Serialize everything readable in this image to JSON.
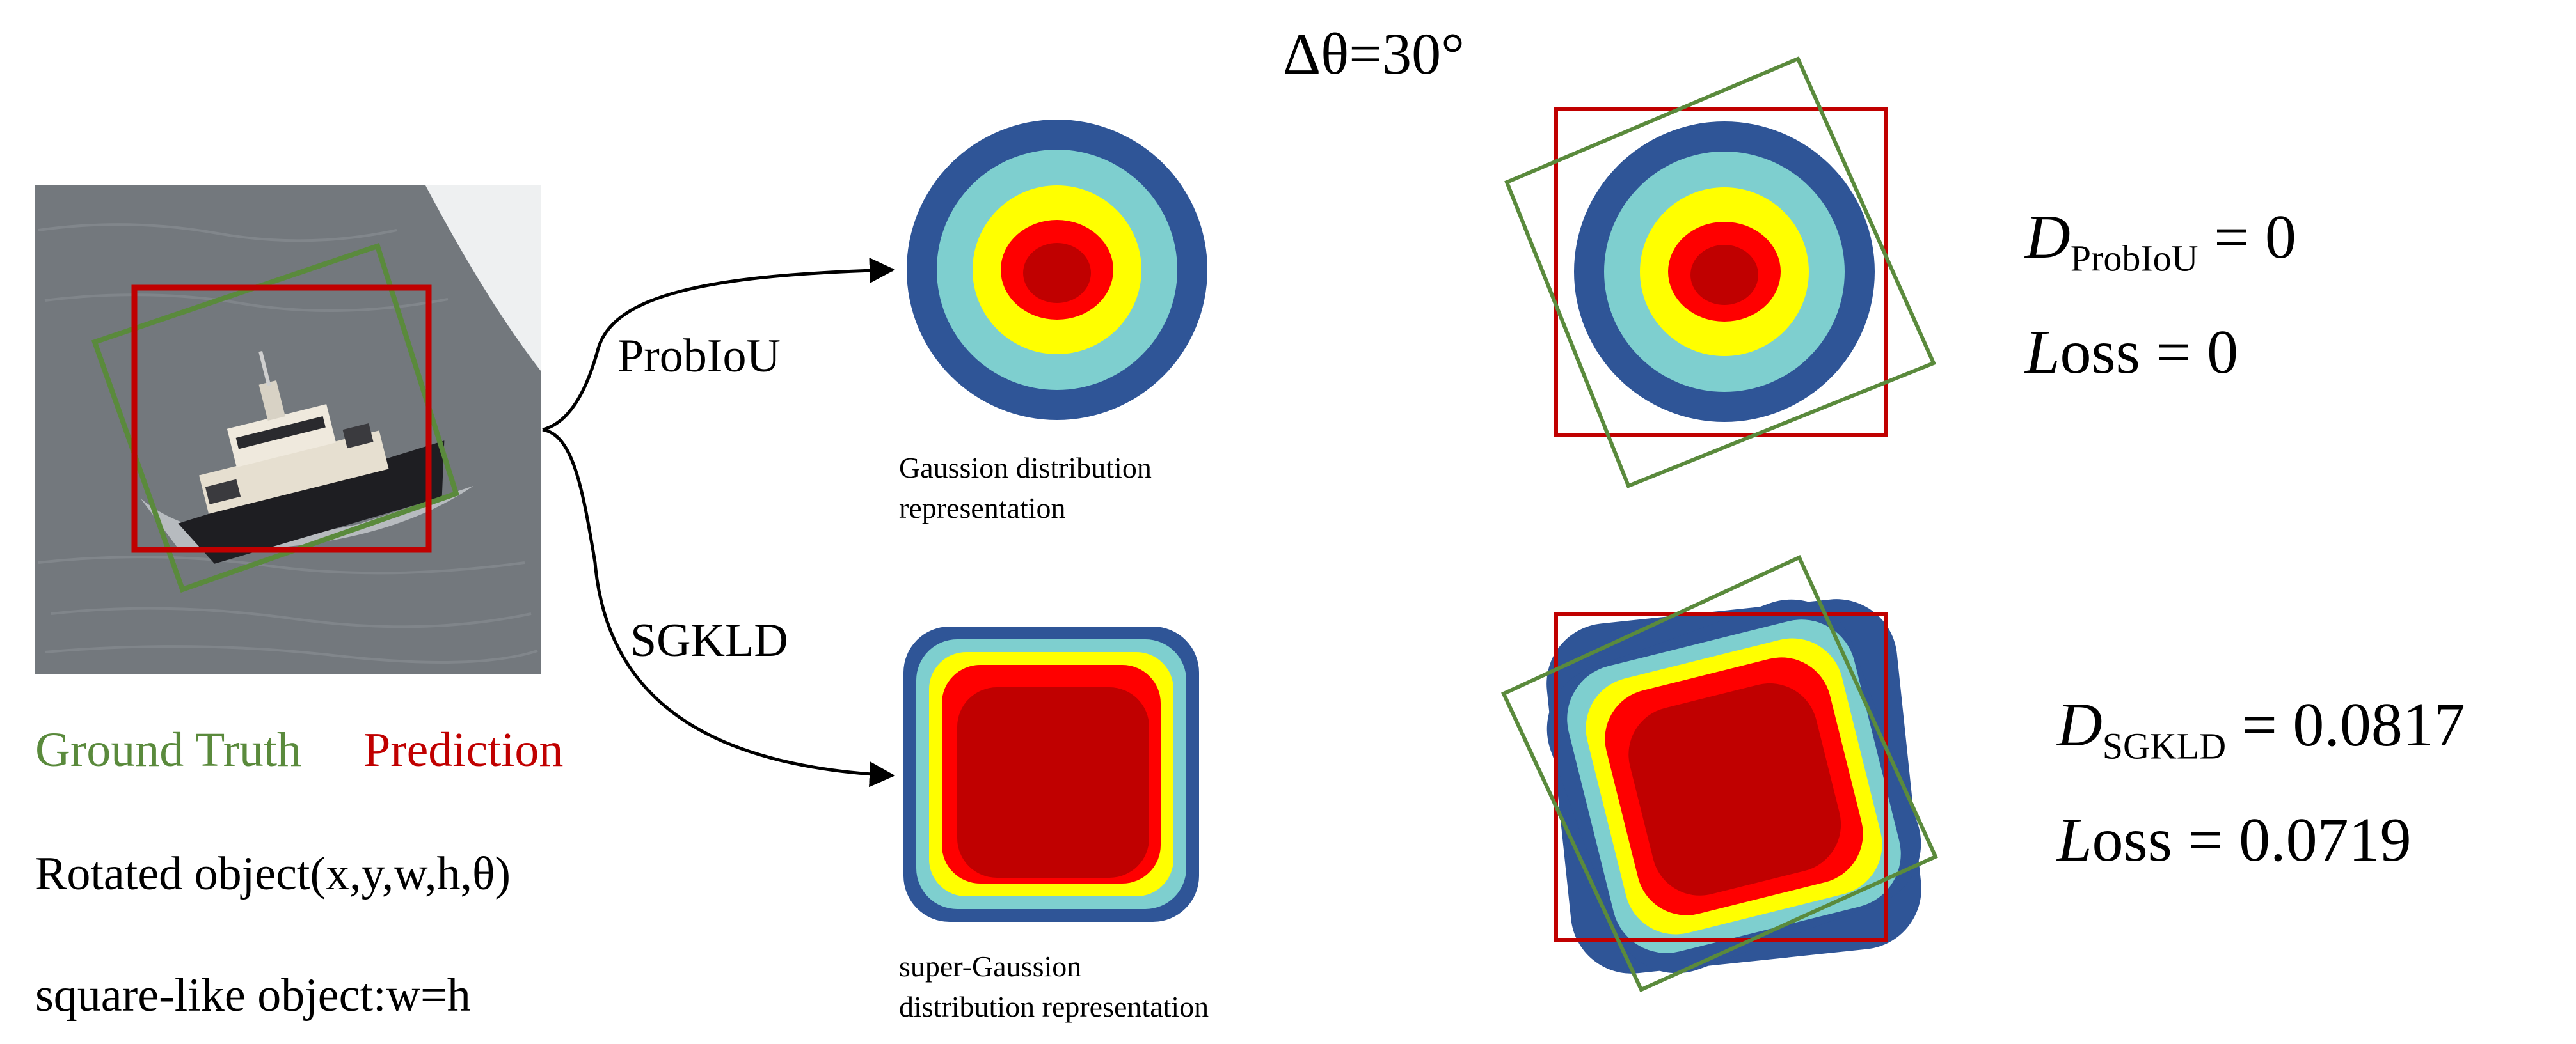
{
  "delta_theta_label": "Δθ=30°",
  "branches": {
    "top_label": "ProbIoU",
    "bottom_label": "SGKLD"
  },
  "captions": {
    "gaussian": [
      "Gaussion distribution",
      "representation"
    ],
    "super_gaussian": [
      "super-Gaussion",
      "distribution representation"
    ]
  },
  "legend": {
    "ground_truth": "Ground Truth",
    "prediction": "Prediction"
  },
  "object_descriptions": {
    "rotated": "Rotated object(x,y,w,h,θ)",
    "square_like": "square-like object:w=h"
  },
  "results": {
    "probiou": {
      "d_letter": "D",
      "d_sub": "ProbIoU",
      "d_value": "= 0",
      "loss_letter": "L",
      "loss_rest": "oss",
      "loss_value": "= 0"
    },
    "sgkld": {
      "d_letter": "D",
      "d_sub": "SGKLD",
      "d_value": "= 0.0817",
      "loss_letter": "L",
      "loss_rest": "oss",
      "loss_value": "= 0.0719"
    }
  },
  "colors": {
    "ground_truth": "#5a8a3c",
    "prediction": "#c00000",
    "ring_dark_blue": "#2f5597",
    "ring_teal": "#7ecfcf",
    "ring_yellow": "#ffff00",
    "ring_red": "#ff0000",
    "ring_dark_red": "#c00000"
  },
  "icons": {
    "photo": "tugboat-photo"
  }
}
